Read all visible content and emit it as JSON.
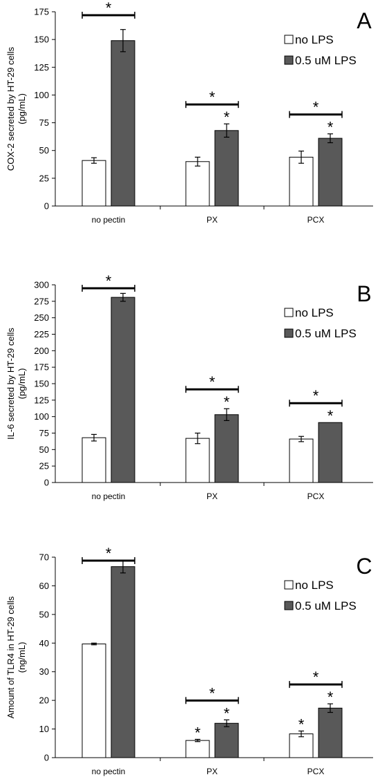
{
  "chart_data": [
    {
      "type": "bar",
      "panel_label": "A",
      "ylabel_line1": "COX-2 secreted by HT-29 cells",
      "ylabel_line2": "(pg/mL)",
      "categories": [
        "no pectin",
        "PX",
        "PCX"
      ],
      "yticks": [
        0,
        25,
        50,
        75,
        100,
        125,
        150,
        175
      ],
      "ylim": [
        0,
        175
      ],
      "series": [
        {
          "name": "no LPS",
          "values": [
            41,
            40,
            44
          ],
          "errors": [
            2.5,
            4,
            5.5
          ]
        },
        {
          "name": "0.5 uM LPS",
          "values": [
            149,
            68,
            61
          ],
          "errors": [
            10,
            6,
            4
          ]
        }
      ],
      "significance": [
        {
          "category": 0,
          "type": "bracket",
          "label": "*"
        },
        {
          "category": 1,
          "type": "bracket",
          "label": "*"
        },
        {
          "category": 1,
          "type": "star",
          "series": 1,
          "label": "*"
        },
        {
          "category": 2,
          "type": "bracket",
          "label": "*"
        },
        {
          "category": 2,
          "type": "star",
          "series": 1,
          "label": "*"
        }
      ]
    },
    {
      "type": "bar",
      "panel_label": "B",
      "ylabel_line1": "IL-6 secreted by HT-29 cells",
      "ylabel_line2": "(pg/mL)",
      "categories": [
        "no pectin",
        "PX",
        "PCX"
      ],
      "yticks": [
        0,
        25,
        50,
        75,
        100,
        125,
        150,
        175,
        200,
        225,
        250,
        275,
        300
      ],
      "ylim": [
        0,
        300
      ],
      "series": [
        {
          "name": "no LPS",
          "values": [
            68,
            67,
            66
          ],
          "errors": [
            5,
            8,
            4
          ]
        },
        {
          "name": "0.5 uM LPS",
          "values": [
            281,
            103,
            91
          ],
          "errors": [
            6,
            9,
            0
          ]
        }
      ],
      "significance": [
        {
          "category": 0,
          "type": "bracket",
          "label": "*"
        },
        {
          "category": 1,
          "type": "bracket",
          "label": "*"
        },
        {
          "category": 1,
          "type": "star",
          "series": 1,
          "label": "*"
        },
        {
          "category": 2,
          "type": "bracket",
          "label": "*"
        },
        {
          "category": 2,
          "type": "star",
          "series": 1,
          "label": "*"
        }
      ]
    },
    {
      "type": "bar",
      "panel_label": "C",
      "ylabel_line1": "Amount of TLR4 in HT-29 cells",
      "ylabel_line2": "(ng/mL)",
      "categories": [
        "no pectin",
        "PX",
        "PCX"
      ],
      "yticks": [
        0,
        10,
        20,
        30,
        40,
        50,
        60,
        70
      ],
      "ylim": [
        0,
        70
      ],
      "series": [
        {
          "name": "no LPS",
          "values": [
            39.7,
            6,
            8.3
          ],
          "errors": [
            0.3,
            0.4,
            1
          ]
        },
        {
          "name": "0.5 uM LPS",
          "values": [
            66.7,
            12,
            17.3
          ],
          "errors": [
            2.2,
            1.2,
            1.5
          ]
        }
      ],
      "significance": [
        {
          "category": 0,
          "type": "bracket",
          "label": "*"
        },
        {
          "category": 1,
          "type": "bracket",
          "label": "*"
        },
        {
          "category": 1,
          "type": "star",
          "series": 0,
          "label": "*"
        },
        {
          "category": 1,
          "type": "star",
          "series": 1,
          "label": "*"
        },
        {
          "category": 2,
          "type": "bracket",
          "label": "*"
        },
        {
          "category": 2,
          "type": "star",
          "series": 0,
          "label": "*"
        },
        {
          "category": 2,
          "type": "star",
          "series": 1,
          "label": "*"
        }
      ]
    }
  ],
  "colors": {
    "no_lps_fill": "#ffffff",
    "lps_fill": "#595959",
    "stroke": "#000000"
  }
}
